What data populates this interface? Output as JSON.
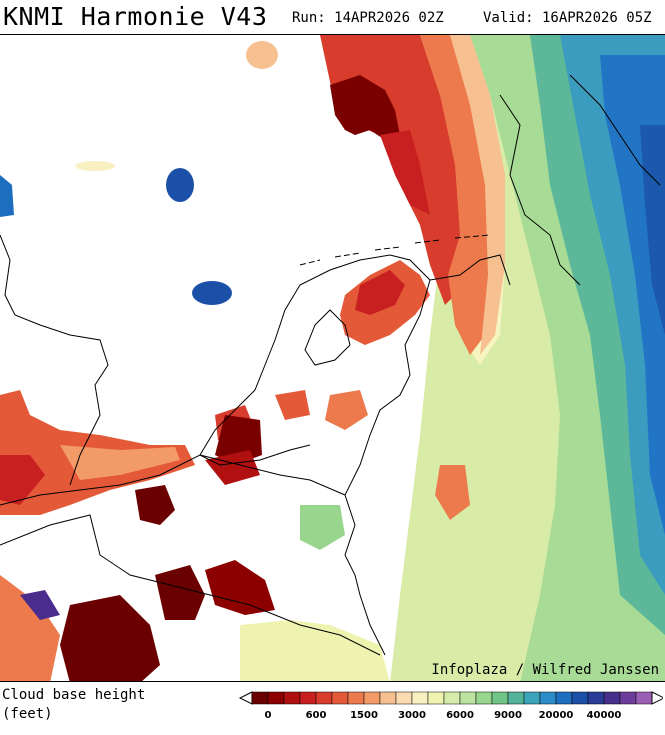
{
  "header": {
    "title": "KNMI Harmonie V43",
    "run": "Run: 14APR2026 02Z",
    "valid": "Valid: 16APR2026 05Z"
  },
  "map": {
    "credit": "Infoplaza / Wilfred Janssen"
  },
  "legend": {
    "parameter_line1": "Cloud base height",
    "parameter_line2": "(feet)",
    "colors": [
      "#6b0000",
      "#8c0000",
      "#b01010",
      "#c82020",
      "#d83c2c",
      "#e45a38",
      "#ec7a4c",
      "#f29a68",
      "#f6c090",
      "#fadcb0",
      "#f8f0c0",
      "#eef4b0",
      "#d6ecaa",
      "#bce4a0",
      "#98d68e",
      "#72c486",
      "#54b49a",
      "#3ca4b8",
      "#2c8cc8",
      "#1e6ec0",
      "#1c50a8",
      "#283c98",
      "#46308c",
      "#6e3c9a",
      "#9a5eb4"
    ],
    "tick_labels": [
      "0",
      "600",
      "1500",
      "3000",
      "6000",
      "9000",
      "20000",
      "40000"
    ]
  }
}
